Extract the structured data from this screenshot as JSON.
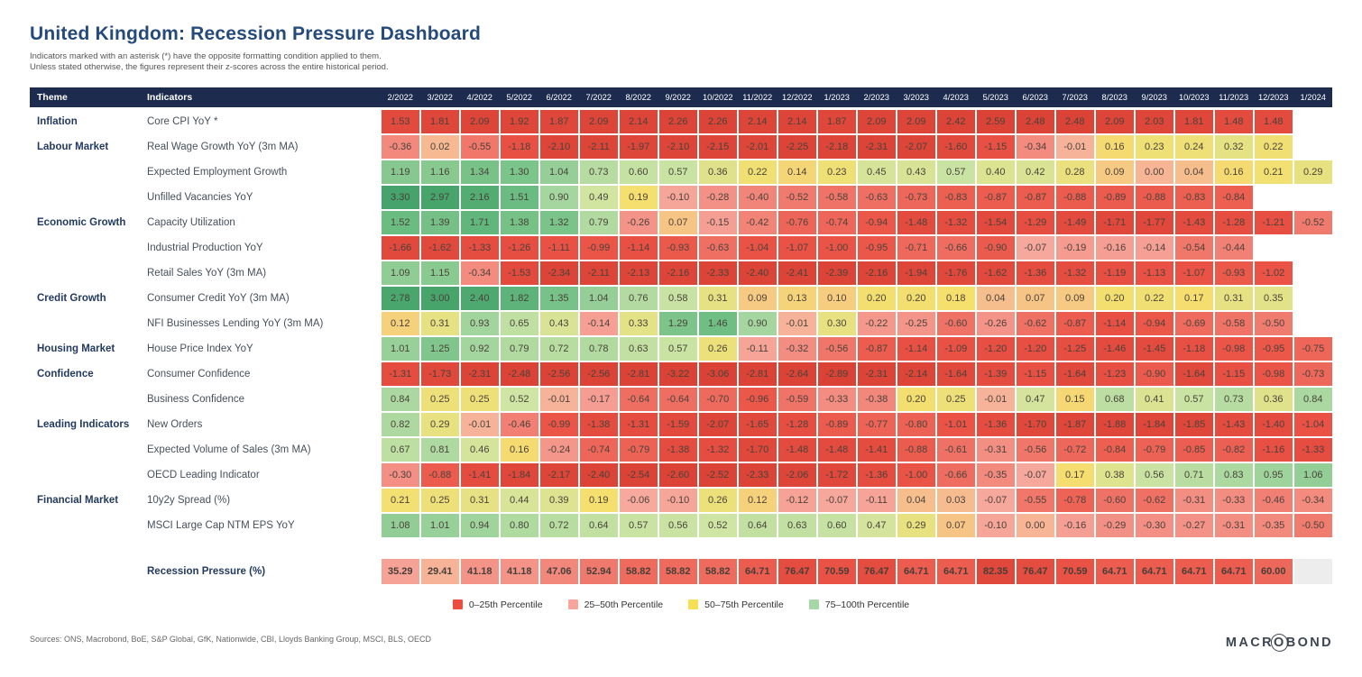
{
  "title": "United Kingdom: Recession Pressure Dashboard",
  "subtitle": [
    "Indicators marked with an asterisk (*) have the opposite formatting condition applied to them.",
    "Unless stated otherwise, the figures represent their z-scores across the entire historical period."
  ],
  "chart_data": {
    "type": "heatmap",
    "theme_header": "Theme",
    "indicators_header": "Indicators",
    "months": [
      "2/2022",
      "3/2022",
      "4/2022",
      "5/2022",
      "6/2022",
      "7/2022",
      "8/2022",
      "9/2022",
      "10/2022",
      "11/2022",
      "12/2022",
      "1/2023",
      "2/2023",
      "3/2023",
      "4/2023",
      "5/2023",
      "6/2023",
      "7/2023",
      "8/2023",
      "9/2023",
      "10/2023",
      "11/2023",
      "12/2023",
      "1/2024"
    ],
    "value_note": "z-scores; color encodes percentile across entire historical period",
    "rows": [
      {
        "theme": "Inflation",
        "indicator": "Core CPI YoY *",
        "inverted": true,
        "values": [
          1.53,
          1.81,
          2.09,
          1.92,
          1.87,
          2.09,
          2.14,
          2.26,
          2.26,
          2.14,
          2.14,
          1.87,
          2.09,
          2.09,
          2.42,
          2.59,
          2.48,
          2.48,
          2.09,
          2.03,
          1.81,
          1.48,
          1.48,
          null
        ]
      },
      {
        "theme": "Labour Market",
        "indicator": "Real Wage Growth YoY (3m MA)",
        "inverted": false,
        "values": [
          -0.36,
          0.02,
          -0.55,
          -1.18,
          -2.1,
          -2.11,
          -1.97,
          -2.1,
          -2.15,
          -2.01,
          -2.25,
          -2.18,
          -2.31,
          -2.07,
          -1.6,
          -1.15,
          -0.34,
          -0.01,
          0.16,
          0.23,
          0.24,
          0.32,
          0.22,
          null
        ]
      },
      {
        "theme": "",
        "indicator": "Expected Employment Growth",
        "inverted": false,
        "values": [
          1.19,
          1.16,
          1.34,
          1.3,
          1.04,
          0.73,
          0.6,
          0.57,
          0.36,
          0.22,
          0.14,
          0.23,
          0.45,
          0.43,
          0.57,
          0.4,
          0.42,
          0.28,
          0.09,
          0.0,
          0.04,
          0.16,
          0.21,
          0.29
        ]
      },
      {
        "theme": "",
        "indicator": "Unfilled Vacancies YoY",
        "inverted": false,
        "values": [
          3.3,
          2.97,
          2.16,
          1.51,
          0.9,
          0.49,
          0.19,
          -0.1,
          -0.28,
          -0.4,
          -0.52,
          -0.58,
          -0.63,
          -0.73,
          -0.83,
          -0.87,
          -0.87,
          -0.88,
          -0.89,
          -0.88,
          -0.83,
          -0.84,
          null,
          null
        ]
      },
      {
        "theme": "Economic Growth",
        "indicator": "Capacity Utilization",
        "inverted": false,
        "values": [
          1.52,
          1.39,
          1.71,
          1.38,
          1.32,
          0.79,
          -0.26,
          0.07,
          -0.15,
          -0.42,
          -0.76,
          -0.74,
          -0.94,
          -1.48,
          -1.32,
          -1.54,
          -1.29,
          -1.49,
          -1.71,
          -1.77,
          -1.43,
          -1.28,
          -1.21,
          -0.52
        ]
      },
      {
        "theme": "",
        "indicator": "Industrial Production YoY",
        "inverted": false,
        "values": [
          -1.66,
          -1.62,
          -1.33,
          -1.26,
          -1.11,
          -0.99,
          -1.14,
          -0.93,
          -0.63,
          -1.04,
          -1.07,
          -1.0,
          -0.95,
          -0.71,
          -0.66,
          -0.9,
          -0.07,
          -0.19,
          -0.16,
          -0.14,
          -0.54,
          -0.44,
          null,
          null
        ]
      },
      {
        "theme": "",
        "indicator": "Retail Sales YoY (3m MA)",
        "inverted": false,
        "values": [
          1.09,
          1.15,
          -0.34,
          -1.53,
          -2.34,
          -2.11,
          -2.13,
          -2.16,
          -2.33,
          -2.4,
          -2.41,
          -2.39,
          -2.16,
          -1.94,
          -1.76,
          -1.62,
          -1.36,
          -1.32,
          -1.19,
          -1.13,
          -1.07,
          -0.93,
          -1.02,
          null
        ]
      },
      {
        "theme": "Credit Growth",
        "indicator": "Consumer Credit YoY (3m MA)",
        "inverted": false,
        "values": [
          2.78,
          3.0,
          2.4,
          1.82,
          1.35,
          1.04,
          0.76,
          0.58,
          0.31,
          0.09,
          0.13,
          0.1,
          0.2,
          0.2,
          0.18,
          0.04,
          0.07,
          0.09,
          0.2,
          0.22,
          0.17,
          0.31,
          0.35,
          null
        ]
      },
      {
        "theme": "",
        "indicator": "NFI Businesses Lending YoY (3m MA)",
        "inverted": false,
        "values": [
          0.12,
          0.31,
          0.93,
          0.65,
          0.43,
          -0.14,
          0.33,
          1.29,
          1.46,
          0.9,
          -0.01,
          0.3,
          -0.22,
          -0.25,
          -0.6,
          -0.26,
          -0.62,
          -0.87,
          -1.14,
          -0.94,
          -0.69,
          -0.58,
          -0.5,
          null
        ]
      },
      {
        "theme": "Housing Market",
        "indicator": "House Price Index YoY",
        "inverted": false,
        "values": [
          1.01,
          1.25,
          0.92,
          0.79,
          0.72,
          0.78,
          0.63,
          0.57,
          0.26,
          -0.11,
          -0.32,
          -0.56,
          -0.87,
          -1.14,
          -1.09,
          -1.2,
          -1.2,
          -1.25,
          -1.46,
          -1.45,
          -1.18,
          -0.98,
          -0.95,
          -0.75
        ]
      },
      {
        "theme": "Confidence",
        "indicator": "Consumer Confidence",
        "inverted": false,
        "values": [
          -1.31,
          -1.73,
          -2.31,
          -2.48,
          -2.56,
          -2.56,
          -2.81,
          -3.22,
          -3.06,
          -2.81,
          -2.64,
          -2.89,
          -2.31,
          -2.14,
          -1.64,
          -1.39,
          -1.15,
          -1.64,
          -1.23,
          -0.9,
          -1.64,
          -1.15,
          -0.98,
          -0.73
        ]
      },
      {
        "theme": "",
        "indicator": "Business Confidence",
        "inverted": false,
        "values": [
          0.84,
          0.25,
          0.25,
          0.52,
          -0.01,
          -0.17,
          -0.64,
          -0.64,
          -0.7,
          -0.96,
          -0.59,
          -0.33,
          -0.38,
          0.2,
          0.25,
          -0.01,
          0.47,
          0.15,
          0.68,
          0.41,
          0.57,
          0.73,
          0.36,
          0.84
        ]
      },
      {
        "theme": "Leading Indicators",
        "indicator": "New Orders",
        "inverted": false,
        "values": [
          0.82,
          0.29,
          -0.01,
          -0.46,
          -0.99,
          -1.38,
          -1.31,
          -1.59,
          -2.07,
          -1.65,
          -1.28,
          -0.89,
          -0.77,
          -0.8,
          -1.01,
          -1.36,
          -1.7,
          -1.87,
          -1.88,
          -1.84,
          -1.85,
          -1.43,
          -1.4,
          -1.04
        ]
      },
      {
        "theme": "",
        "indicator": "Expected Volume of Sales (3m MA)",
        "inverted": false,
        "values": [
          0.67,
          0.81,
          0.46,
          0.16,
          -0.24,
          -0.74,
          -0.79,
          -1.38,
          -1.32,
          -1.7,
          -1.48,
          -1.48,
          -1.41,
          -0.88,
          -0.61,
          -0.31,
          -0.56,
          -0.72,
          -0.84,
          -0.79,
          -0.85,
          -0.82,
          -1.16,
          -1.33
        ]
      },
      {
        "theme": "",
        "indicator": "OECD Leading Indicator",
        "inverted": false,
        "values": [
          -0.3,
          -0.88,
          -1.41,
          -1.84,
          -2.17,
          -2.4,
          -2.54,
          -2.6,
          -2.52,
          -2.33,
          -2.06,
          -1.72,
          -1.36,
          -1.0,
          -0.66,
          -0.35,
          -0.07,
          0.17,
          0.38,
          0.56,
          0.71,
          0.83,
          0.95,
          1.06
        ]
      },
      {
        "theme": "Financial Market",
        "indicator": "10y2y Spread (%)",
        "inverted": false,
        "values": [
          0.21,
          0.25,
          0.31,
          0.44,
          0.39,
          0.19,
          -0.06,
          -0.1,
          0.26,
          0.12,
          -0.12,
          -0.07,
          -0.11,
          0.04,
          0.03,
          -0.07,
          -0.55,
          -0.78,
          -0.6,
          -0.62,
          -0.31,
          -0.33,
          -0.46,
          -0.34
        ]
      },
      {
        "theme": "",
        "indicator": "MSCI Large Cap NTM EPS YoY",
        "inverted": false,
        "values": [
          1.08,
          1.01,
          0.94,
          0.8,
          0.72,
          0.64,
          0.57,
          0.56,
          0.52,
          0.64,
          0.63,
          0.6,
          0.47,
          0.29,
          0.07,
          -0.1,
          0.0,
          -0.16,
          -0.29,
          -0.3,
          -0.27,
          -0.31,
          -0.35,
          -0.5
        ]
      }
    ],
    "pressure_row": {
      "label": "Recession Pressure (%)",
      "values": [
        35.29,
        29.41,
        41.18,
        41.18,
        47.06,
        52.94,
        58.82,
        58.82,
        58.82,
        64.71,
        76.47,
        70.59,
        76.47,
        64.71,
        64.71,
        82.35,
        76.47,
        70.59,
        64.71,
        64.71,
        64.71,
        64.71,
        60.0,
        null
      ]
    }
  },
  "legend": {
    "items": [
      {
        "label": "0–25th Percentile",
        "color": "#ee4c3c"
      },
      {
        "label": "25–50th Percentile",
        "color": "#f8a69c"
      },
      {
        "label": "50–75th Percentile",
        "color": "#f5df52"
      },
      {
        "label": "75–100th Percentile",
        "color": "#a6d7a8"
      }
    ]
  },
  "footer": {
    "sources": "Sources: ONS, Macrobond, BoE, S&P Global, GfK, Nationwide, CBI, Lloyds Banking Group, MSCI, BLS, OECD",
    "logo_text": "MACROBOND"
  }
}
